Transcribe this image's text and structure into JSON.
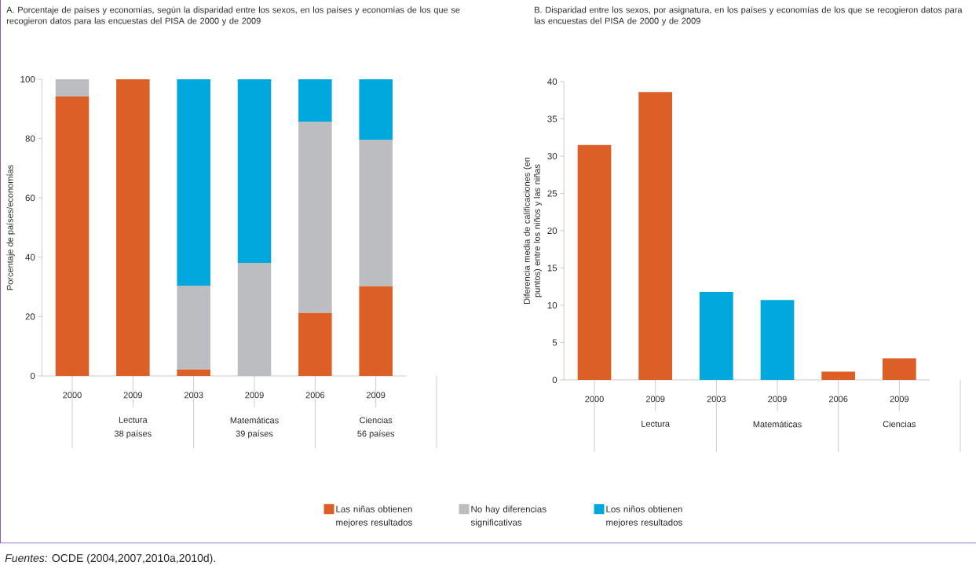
{
  "chart_data": [
    {
      "type": "bar",
      "title": "A. Porcentaje de países y economías, según la disparidad entre los sexos, en los países y economías de los que se recogieron datos para las encuestas del PISA de 2000 y de 2009",
      "ylabel": "Porcentaje de países/economías",
      "categories": [
        "2000",
        "2009",
        "2003",
        "2009",
        "2006",
        "2009"
      ],
      "stacked": true,
      "series": [
        {
          "name": "Las niñas obtienen mejores resultados",
          "color": "#dc5f27",
          "values": [
            94.2,
            100,
            2.2,
            0,
            21.2,
            30.2
          ]
        },
        {
          "name": "No hay diferencias significativas",
          "color": "#bcbdc1",
          "values": [
            5.8,
            0,
            28.2,
            38.1,
            64.5,
            49.4
          ]
        },
        {
          "name": "Los niños obtienen mejores resultados",
          "color": "#00a8de",
          "values": [
            0,
            0,
            69.6,
            61.9,
            14.3,
            20.4
          ]
        }
      ],
      "ylim": [
        0,
        100
      ],
      "yticks": [
        0,
        20,
        40,
        60,
        80,
        100
      ],
      "legend": "bottom",
      "annotations": [
        "Lectura",
        "38 países",
        "Matemáticas",
        "39 países",
        "Ciencias",
        "56 países",
        "*Fuentes:* OCDE (2004,2007,2010a,2010d)."
      ]
    },
    {
      "type": "bar",
      "title": "B. Disparidad entre los sexos, por asignatura, en los países y economías de los que se recogieron datos para las encuestas del PISA de 2000 y de 2009",
      "ylabel": "Diferencia media de calificaciones (en puntos) entre los niños y las niñas",
      "categories": [
        "2000",
        "2009",
        "2003",
        "2009",
        "2006",
        "2009"
      ],
      "values": [
        31.5,
        38.6,
        11.8,
        10.7,
        1.1,
        2.9
      ],
      "colors": [
        "#dc5f27",
        "#dc5f27",
        "#00a8de",
        "#00a8de",
        "#dc5f27",
        "#dc5f27"
      ],
      "ylim": [
        0,
        40
      ],
      "yticks": [
        0,
        5,
        10,
        15,
        20,
        25,
        30,
        35,
        40
      ],
      "annotations": [
        "Lectura",
        "Matemáticas",
        "Ciencias"
      ]
    }
  ]
}
